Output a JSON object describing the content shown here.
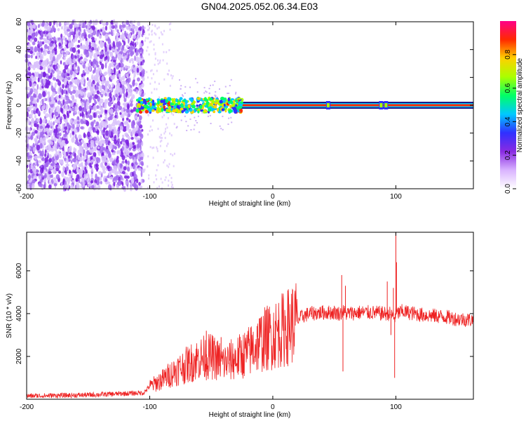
{
  "title": "GN04.2025.052.06.34.E03",
  "chart_data": [
    {
      "type": "heatmap",
      "xlabel": "Height of straight line (km)",
      "ylabel": "Frequency (Hz)",
      "xlim": [
        -200,
        163
      ],
      "ylim": [
        -60,
        60
      ],
      "xticks": [
        -200,
        -100,
        0,
        100
      ],
      "yticks": [
        -60,
        -40,
        -20,
        0,
        20,
        40,
        60
      ],
      "colorbar": {
        "label": "Normalized spectral amplitude",
        "range": [
          0,
          1
        ],
        "ticks": [
          0.0,
          0.2,
          0.4,
          0.6,
          0.8
        ],
        "colors": [
          "#ffffff",
          "#d9b3ff",
          "#8a2be2",
          "#3030ff",
          "#00c8ff",
          "#00ff66",
          "#aaff00",
          "#ffd000",
          "#ff2a00",
          "#ff0088"
        ]
      },
      "features": {
        "scattered_noise_x_range": [
          -200,
          -105
        ],
        "carrier_line_frequency": 0,
        "carrier_line_x_range": [
          -30,
          163
        ],
        "bright_cluster_x_range": [
          -110,
          -25
        ],
        "bright_spots_x": [
          45,
          88,
          92
        ]
      }
    },
    {
      "type": "line",
      "xlabel": "Height of straight line (km)",
      "ylabel": "SNR (10 * v/v)",
      "xlim": [
        -200,
        163
      ],
      "ylim": [
        0,
        7800
      ],
      "xticks": [
        -200,
        -100,
        0,
        100
      ],
      "yticks": [
        2000,
        4000,
        6000
      ],
      "series": [
        {
          "color": "#ee2222",
          "envelope_x": [
            -200,
            -150,
            -105,
            -100,
            -90,
            -80,
            -70,
            -60,
            -50,
            -40,
            -30,
            -20,
            -10,
            0,
            10,
            20,
            25,
            30,
            40,
            50,
            55,
            57,
            60,
            70,
            80,
            90,
            95,
            99,
            100,
            101,
            105,
            110,
            120,
            130,
            140,
            150,
            163
          ],
          "envelope_y": [
            150,
            200,
            300,
            600,
            900,
            1300,
            1600,
            1900,
            2000,
            1700,
            1900,
            2200,
            2700,
            3000,
            3300,
            3700,
            3900,
            4000,
            4050,
            4050,
            4000,
            4100,
            4000,
            4050,
            4050,
            4000,
            4000,
            3800,
            4000,
            4000,
            4100,
            4050,
            3950,
            3900,
            3850,
            3750,
            3700
          ],
          "spikes": [
            {
              "x": -68,
              "y": 2300
            },
            {
              "x": -66,
              "y": 2200
            },
            {
              "x": -54,
              "y": 3200
            },
            {
              "x": -52,
              "y": 2800
            },
            {
              "x": -42,
              "y": 2900
            },
            {
              "x": -35,
              "y": 2600
            },
            {
              "x": 56,
              "y": 5800
            },
            {
              "x": 57,
              "y": 1300
            },
            {
              "x": 59,
              "y": 5300
            },
            {
              "x": 93,
              "y": 5500
            },
            {
              "x": 96,
              "y": 3000
            },
            {
              "x": 98,
              "y": 5200
            },
            {
              "x": 99,
              "y": 1000
            },
            {
              "x": 100,
              "y": 7800
            },
            {
              "x": 100.5,
              "y": 6400
            }
          ]
        }
      ]
    }
  ]
}
